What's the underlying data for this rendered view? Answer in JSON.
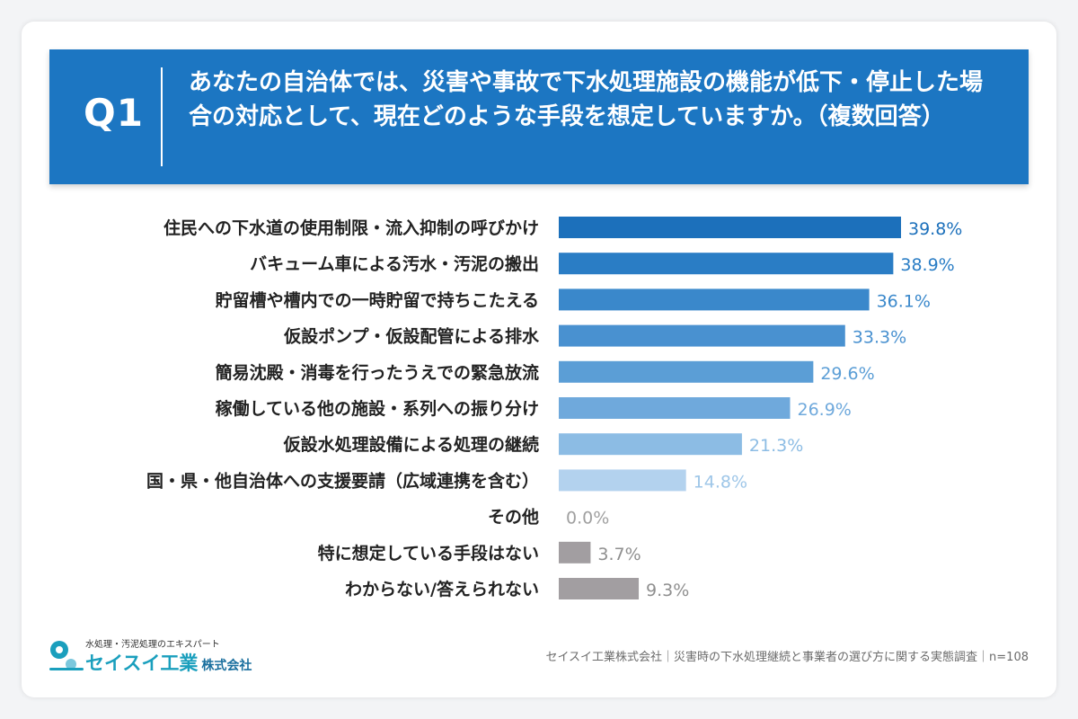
{
  "question": {
    "label": "Q1",
    "text": "あなたの自治体では、災害や事故で下水処理施設の機能が低下・停止した場合の対応として、現在どのような手段を想定していますか。（複数回答）"
  },
  "chart_data": {
    "type": "bar",
    "orientation": "horizontal",
    "categories": [
      "住民への下水道の使用制限・流入抑制の呼びかけ",
      "バキューム車による汚水・汚泥の搬出",
      "貯留槽や槽内での一時貯留で持ちこたえる",
      "仮設ポンプ・仮設配管による排水",
      "簡易沈殿・消毒を行ったうえでの緊急放流",
      "稼働している他の施設・系列への振り分け",
      "仮設水処理設備による処理の継続",
      "国・県・他自治体への支援要請（広域連携を含む）",
      "その他",
      "特に想定している手段はない",
      "わからない/答えられない"
    ],
    "values": [
      39.8,
      38.9,
      36.1,
      33.3,
      29.6,
      26.9,
      21.3,
      14.8,
      0.0,
      3.7,
      9.3
    ],
    "value_labels": [
      "39.8%",
      "38.9%",
      "36.1%",
      "33.3%",
      "29.6%",
      "26.9%",
      "21.3%",
      "14.8%",
      "0.0%",
      "3.7%",
      "9.3%"
    ],
    "bar_colors": [
      "#1c70bb",
      "#2a7dc5",
      "#3a88cb",
      "#4991d0",
      "#5b9ed6",
      "#6fa9dc",
      "#8cbce4",
      "#b3d2ee",
      "#bbbbbb",
      "#a29ea1",
      "#a29ea1"
    ],
    "label_colors": [
      "#1c70bb",
      "#2a7dc5",
      "#3a88cb",
      "#4991d0",
      "#5b9ed6",
      "#6fa9dc",
      "#8cbce4",
      "#9ec6e8",
      "#a0a0a0",
      "#8f8f8f",
      "#8f8f8f"
    ],
    "xlim": [
      0,
      40
    ],
    "grid": false,
    "legend": "none"
  },
  "logo": {
    "tagline": "水処理・汚泥処理のエキスパート",
    "name": "セイスイ工業",
    "suffix": "株式会社"
  },
  "footer": {
    "source": "セイスイ工業株式会社｜災害時の下水処理継続と事業者の選び方に関する実態調査｜n=108"
  },
  "colors": {
    "banner": "#1c76c2",
    "logo_teal": "#1a9fbd"
  }
}
